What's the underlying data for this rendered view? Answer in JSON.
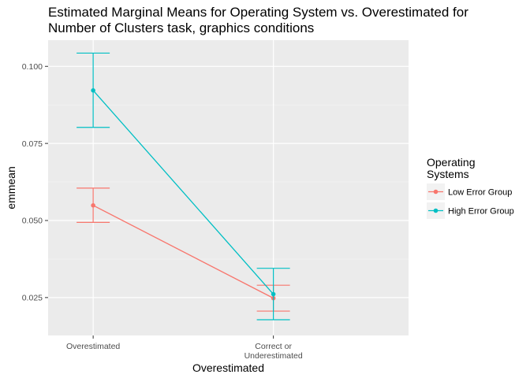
{
  "chart_data": {
    "type": "line",
    "title_lines": [
      "Estimated Marginal Means for Operating System vs. Overestimated for",
      "Number of Clusters task, graphics conditions"
    ],
    "xlabel": "Overestimated",
    "ylabel": "emmean",
    "categories": [
      [
        "Overestimated"
      ],
      [
        "Correct or",
        "Underestimated"
      ]
    ],
    "y_ticks": [
      0.025,
      0.05,
      0.075,
      0.1
    ],
    "y_tick_labels": [
      "0.025",
      "0.050",
      "0.075",
      "0.100"
    ],
    "ylim": [
      0.0127,
      0.1085
    ],
    "grid": true,
    "legend": {
      "title_lines": [
        "Operating",
        "Systems"
      ],
      "placement": "right"
    },
    "series": [
      {
        "name": "Low Error Group",
        "color": "#F8766D",
        "values": [
          0.0549,
          0.0248
        ],
        "lower": [
          0.0494,
          0.0206
        ],
        "upper": [
          0.0605,
          0.029
        ]
      },
      {
        "name": "High Error Group",
        "color": "#00BFC4",
        "values": [
          0.0922,
          0.0261
        ],
        "lower": [
          0.0802,
          0.0178
        ],
        "upper": [
          0.1043,
          0.0345
        ]
      }
    ]
  }
}
